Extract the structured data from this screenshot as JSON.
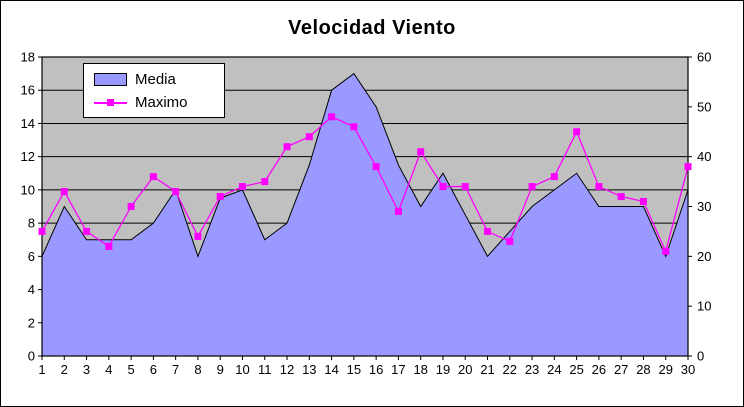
{
  "chart_data": {
    "type": "combo",
    "title": "Velocidad Viento",
    "categories": [
      "1",
      "2",
      "3",
      "4",
      "5",
      "6",
      "7",
      "8",
      "9",
      "10",
      "11",
      "12",
      "13",
      "14",
      "15",
      "16",
      "17",
      "18",
      "19",
      "20",
      "21",
      "22",
      "23",
      "24",
      "25",
      "26",
      "27",
      "28",
      "29",
      "30"
    ],
    "series": [
      {
        "name": "Media",
        "type": "area",
        "axis": "left",
        "color": "#9999FF",
        "outline": "#000000",
        "values": [
          6,
          9,
          7,
          7,
          7,
          8,
          10,
          6,
          9.5,
          10,
          7,
          8,
          11.5,
          16,
          17,
          15,
          11.5,
          9,
          11,
          8.5,
          6,
          7.5,
          9,
          10,
          11,
          9,
          9,
          9,
          6,
          10
        ]
      },
      {
        "name": "Maximo",
        "type": "line",
        "axis": "right",
        "color": "#FF00FF",
        "marker": "square",
        "values": [
          25,
          33,
          25,
          22,
          30,
          36,
          33,
          24,
          32,
          34,
          35,
          42,
          44,
          48,
          46,
          38,
          29,
          41,
          34,
          34,
          25,
          23,
          34,
          36,
          45,
          34,
          32,
          31,
          21,
          38
        ]
      }
    ],
    "left_axis": {
      "min": 0,
      "max": 18,
      "step": 2,
      "ticks": [
        0,
        2,
        4,
        6,
        8,
        10,
        12,
        14,
        16,
        18
      ]
    },
    "right_axis": {
      "min": 0,
      "max": 60,
      "step": 10,
      "ticks": [
        0,
        10,
        20,
        30,
        40,
        50,
        60
      ]
    },
    "grid": true,
    "grid_color": "#000000",
    "plot_bg": "#C0C0C0",
    "background": "#FFFFFF",
    "legend": {
      "position": "top-left-inside",
      "items": [
        "Media",
        "Maximo"
      ]
    }
  }
}
